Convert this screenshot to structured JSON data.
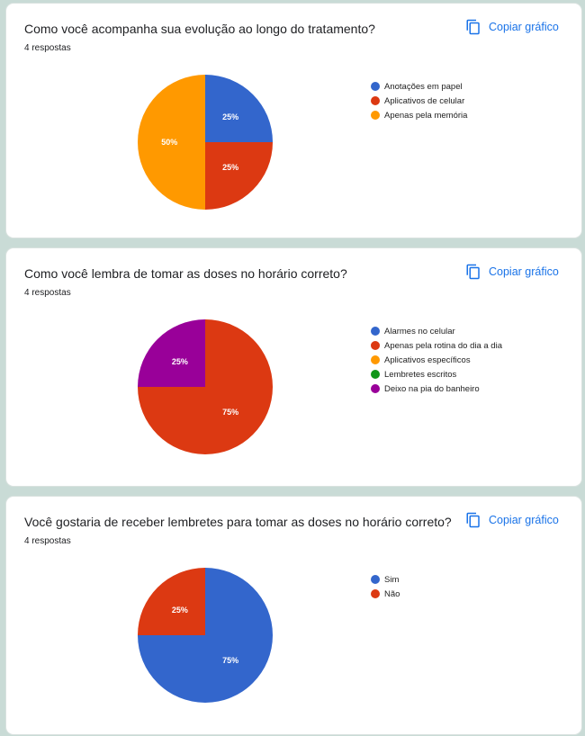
{
  "copy_label": "Copiar gráfico",
  "cards": [
    {
      "title": "Como você acompanha sua evolução ao longo do tratamento?",
      "count": "4 respostas"
    },
    {
      "title": "Como você lembra de tomar as doses no horário correto?",
      "count": "4 respostas"
    },
    {
      "title": "Você gostaria de receber lembretes para tomar as doses no horário correto?",
      "count": "4 respostas"
    }
  ],
  "chart_data": [
    {
      "type": "pie",
      "categories": [
        "Anotações em papel",
        "Aplicativos de celular",
        "Apenas pela memória"
      ],
      "values": [
        25,
        25,
        50
      ],
      "labels": [
        "25%",
        "25%",
        "50%"
      ],
      "colors": [
        "#3366cc",
        "#dc3912",
        "#ff9900"
      ],
      "legend": "right"
    },
    {
      "type": "pie",
      "categories": [
        "Alarmes no celular",
        "Apenas pela rotina do dia a dia",
        "Aplicativos específicos",
        "Lembretes escritos",
        "Deixo na pia do banheiro"
      ],
      "values": [
        0,
        75,
        0,
        0,
        25
      ],
      "labels": [
        "",
        "75%",
        "",
        "",
        "25%"
      ],
      "colors": [
        "#3366cc",
        "#dc3912",
        "#ff9900",
        "#109618",
        "#990099"
      ],
      "legend": "right"
    },
    {
      "type": "pie",
      "categories": [
        "Sim",
        "Não"
      ],
      "values": [
        75,
        25
      ],
      "labels": [
        "75%",
        "25%"
      ],
      "colors": [
        "#3366cc",
        "#dc3912"
      ],
      "legend": "right"
    }
  ]
}
